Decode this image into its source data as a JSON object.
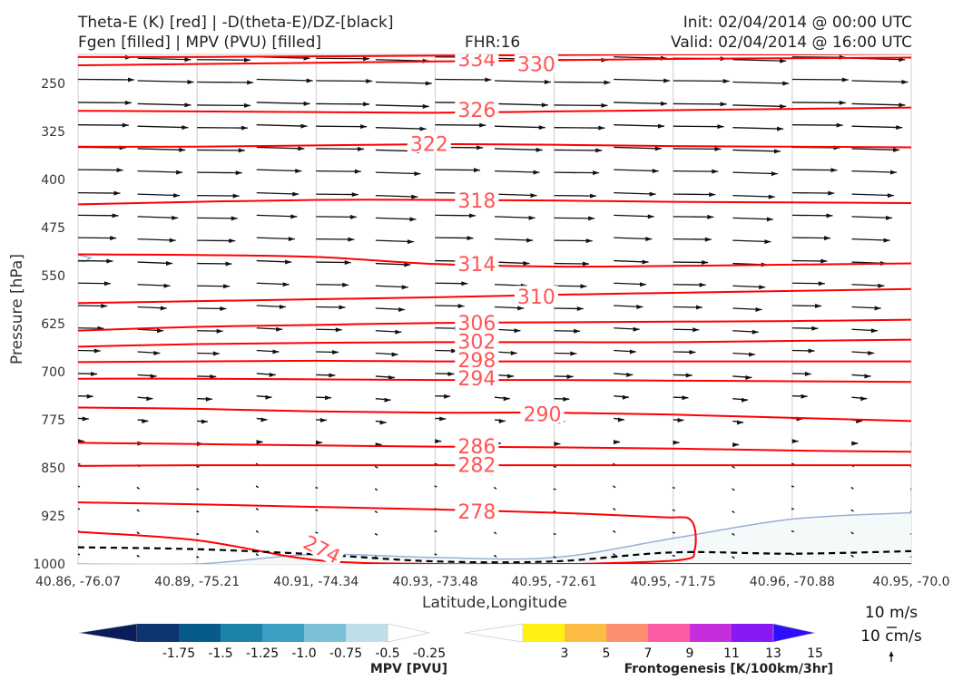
{
  "header": {
    "title_line1": "Theta-E (K) [red] | -D(theta-E)/DZ-[black]",
    "title_line2": "Fgen [filled] | MPV (PVU) [filled]",
    "fhr": "FHR:16",
    "init": "Init: 02/04/2014 @ 00:00 UTC",
    "valid": "Valid: 02/04/2014 @ 16:00 UTC"
  },
  "colors": {
    "theta_e": "#ff0000",
    "theta_e_label": "#ff5555",
    "wind": "#111111",
    "mpv_contour": "#9aaed8",
    "mpv_fill": "#f4f9fa",
    "grid": "#cccccc"
  },
  "chart_data": {
    "type": "cross-section",
    "xlabel": "Latitude,Longitude",
    "ylabel": "Pressure [hPa]",
    "x_ticks": [
      "40.86, -76.07",
      "40.89, -75.21",
      "40.91, -74.34",
      "40.93, -73.48",
      "40.95, -72.61",
      "40.95, -71.75",
      "40.96, -70.88",
      "40.95, -70.0"
    ],
    "y_ticks": [
      250,
      325,
      400,
      475,
      550,
      625,
      700,
      775,
      850,
      925,
      1000
    ],
    "ylim": [
      1000,
      205
    ],
    "theta_e_contours": [
      {
        "value": 334,
        "pressures": [
          209,
          209,
          208,
          207,
          206,
          205,
          205,
          204
        ]
      },
      {
        "value": 330,
        "pressures": [
          222,
          220,
          218,
          216,
          214,
          212,
          211,
          210
        ]
      },
      {
        "value": 326,
        "pressures": [
          293,
          294,
          295,
          296,
          294,
          292,
          290,
          288
        ]
      },
      {
        "value": 322,
        "pressures": [
          349,
          349,
          347,
          345,
          346,
          348,
          349,
          350
        ]
      },
      {
        "value": 318,
        "pressures": [
          439,
          435,
          432,
          432,
          433,
          435,
          436,
          437
        ]
      },
      {
        "value": 314,
        "pressures": [
          517,
          518,
          521,
          532,
          536,
          535,
          533,
          531
        ]
      },
      {
        "value": 310,
        "pressures": [
          593,
          590,
          587,
          584,
          580,
          577,
          574,
          571
        ]
      },
      {
        "value": 306,
        "pressures": [
          636,
          630,
          627,
          624,
          623,
          622,
          621,
          619
        ]
      },
      {
        "value": 302,
        "pressures": [
          661,
          657,
          655,
          654,
          654,
          654,
          652,
          650
        ]
      },
      {
        "value": 298,
        "pressures": [
          685,
          684,
          683,
          684,
          684,
          684,
          684,
          684
        ]
      },
      {
        "value": 294,
        "pressures": [
          711,
          711,
          712,
          713,
          713,
          714,
          715,
          716
        ]
      },
      {
        "value": 290,
        "pressures": [
          756,
          758,
          762,
          764,
          764,
          767,
          772,
          777
        ]
      },
      {
        "value": 286,
        "pressures": [
          811,
          813,
          815,
          817,
          818,
          820,
          823,
          825
        ]
      },
      {
        "value": 282,
        "pressures": [
          847,
          846,
          846,
          846,
          846,
          846,
          846,
          846
        ]
      },
      {
        "value": 278,
        "pressures": [
          904,
          907,
          911,
          915,
          920,
          927,
          932,
          935
        ]
      },
      {
        "value": 274,
        "pressures": [
          950,
          963,
          994,
          1000,
          1000,
          1000,
          1000,
          1000
        ]
      }
    ],
    "theta_e_labels": [
      {
        "text": "334",
        "x_index": 3.35,
        "p": 212
      },
      {
        "text": "330",
        "x_index": 3.85,
        "p": 220
      },
      {
        "text": "326",
        "x_index": 3.35,
        "p": 291
      },
      {
        "text": "322",
        "x_index": 2.95,
        "p": 344
      },
      {
        "text": "318",
        "x_index": 3.35,
        "p": 433
      },
      {
        "text": "314",
        "x_index": 3.35,
        "p": 532
      },
      {
        "text": "310",
        "x_index": 3.85,
        "p": 583
      },
      {
        "text": "306",
        "x_index": 3.35,
        "p": 624
      },
      {
        "text": "302",
        "x_index": 3.35,
        "p": 653
      },
      {
        "text": "298",
        "x_index": 3.35,
        "p": 682
      },
      {
        "text": "294",
        "x_index": 3.35,
        "p": 710
      },
      {
        "text": "290",
        "x_index": 3.9,
        "p": 766
      },
      {
        "text": "286",
        "x_index": 3.35,
        "p": 816
      },
      {
        "text": "282",
        "x_index": 3.35,
        "p": 845
      },
      {
        "text": "278",
        "x_index": 3.35,
        "p": 918
      },
      {
        "text": "274",
        "x_index": 2.05,
        "p": 977,
        "rotate": 27
      }
    ],
    "dtheta_dz_contour": {
      "value": 0,
      "style": "dashed",
      "pressures": [
        974,
        977,
        985,
        996,
        996,
        982,
        984,
        980
      ]
    },
    "mpv_contours": [
      {
        "label": "",
        "region": "left-boundary",
        "p_range": [
          518,
          528
        ]
      },
      {
        "label": "",
        "region": "near-surface",
        "pressures": [
          1000,
          1000,
          985,
          990,
          990,
          960,
          930,
          920
        ]
      }
    ],
    "wind_rows_p": [
      211,
      246,
      282,
      317,
      352,
      387,
      423,
      458,
      493,
      529,
      564,
      599,
      634,
      669,
      705,
      740,
      775,
      810,
      846,
      881,
      916,
      951,
      987
    ],
    "wind_u": [
      0.95,
      1.0,
      0.95,
      0.9,
      0.85,
      0.8,
      0.75,
      0.72,
      0.68,
      0.62,
      0.58,
      0.52,
      0.46,
      0.4,
      0.34,
      0.27,
      0.19,
      0.11,
      0.04,
      0.02,
      0.02,
      0.02,
      0.02
    ],
    "reference_vector": {
      "label": "10 m/s",
      "label2": "10 cm/s"
    },
    "colorbar_mpv": {
      "title": "MPV [PVU]",
      "ticks": [
        "-1.75",
        "-1.5",
        "-1.25",
        "-1.0",
        "-0.75",
        "-0.5",
        "-0.25"
      ],
      "colors": [
        "#0b1c5c",
        "#0d3570",
        "#075a8c",
        "#1b82a8",
        "#3b9fc3",
        "#7cc0d8",
        "#bfdfe8",
        "#ffffff"
      ]
    },
    "colorbar_fgen": {
      "title": "Frontogenesis [K/100km/3hr]",
      "ticks": [
        "3",
        "5",
        "7",
        "9",
        "11",
        "13",
        "15"
      ],
      "colors": [
        "#ffffff",
        "#fff014",
        "#fdbd44",
        "#fe8f6e",
        "#fc5aa2",
        "#c42edb",
        "#8a18f5",
        "#2d0ffd"
      ]
    }
  }
}
